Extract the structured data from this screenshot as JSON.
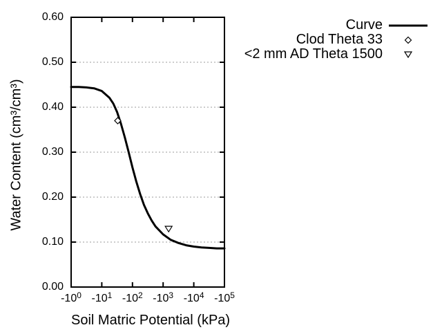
{
  "chart_data": {
    "type": "line",
    "title": "",
    "xlabel": "Soil Matric Potential (kPa)",
    "ylabel": "Water Content (cm³/cm³)",
    "x_axis": {
      "scale": "negative-log10",
      "log_range": [
        0,
        5
      ],
      "ticks": [
        {
          "base": "-10",
          "exp": "0",
          "log10_abs_kpa": 0
        },
        {
          "base": "-10",
          "exp": "1",
          "log10_abs_kpa": 1
        },
        {
          "base": "-10",
          "exp": "2",
          "log10_abs_kpa": 2
        },
        {
          "base": "-10",
          "exp": "3",
          "log10_abs_kpa": 3
        },
        {
          "base": "-10",
          "exp": "4",
          "log10_abs_kpa": 4
        },
        {
          "base": "-10",
          "exp": "5",
          "log10_abs_kpa": 5
        }
      ]
    },
    "y_axis": {
      "range": [
        0,
        0.6
      ],
      "ticks": [
        {
          "label": "0.00",
          "value": 0.0
        },
        {
          "label": "0.10",
          "value": 0.1
        },
        {
          "label": "0.20",
          "value": 0.2
        },
        {
          "label": "0.30",
          "value": 0.3
        },
        {
          "label": "0.40",
          "value": 0.4
        },
        {
          "label": "0.50",
          "value": 0.5
        },
        {
          "label": "0.60",
          "value": 0.6
        }
      ],
      "grid_values": [
        0.1,
        0.2,
        0.3,
        0.4,
        0.5
      ],
      "grid_style": "dashed"
    },
    "legend": {
      "position": "top-right-outside",
      "entries": [
        {
          "label": "Curve",
          "marker": "line"
        },
        {
          "label": "Clod Theta 33",
          "marker": "open-diamond"
        },
        {
          "label": "<2 mm AD Theta 1500",
          "marker": "open-triangle-down"
        }
      ]
    },
    "series": [
      {
        "name": "Curve",
        "type": "line",
        "color": "#000000",
        "points_log10_theta": [
          [
            0,
            0.445
          ],
          [
            0.25,
            0.445
          ],
          [
            0.5,
            0.444
          ],
          [
            0.75,
            0.442
          ],
          [
            1,
            0.436
          ],
          [
            1.25,
            0.421
          ],
          [
            1.375,
            0.408
          ],
          [
            1.5,
            0.389
          ],
          [
            1.625,
            0.363
          ],
          [
            1.75,
            0.333
          ],
          [
            1.875,
            0.3
          ],
          [
            2,
            0.266
          ],
          [
            2.125,
            0.235
          ],
          [
            2.25,
            0.207
          ],
          [
            2.375,
            0.183
          ],
          [
            2.5,
            0.164
          ],
          [
            2.625,
            0.148
          ],
          [
            2.75,
            0.135
          ],
          [
            3,
            0.117
          ],
          [
            3.25,
            0.105
          ],
          [
            3.5,
            0.098
          ],
          [
            3.75,
            0.093
          ],
          [
            4,
            0.09
          ],
          [
            4.25,
            0.088
          ],
          [
            4.5,
            0.087
          ],
          [
            4.75,
            0.086
          ],
          [
            5,
            0.086
          ]
        ]
      },
      {
        "name": "Clod Theta 33",
        "type": "scatter",
        "marker": "open-diamond",
        "color": "#000000",
        "points": [
          {
            "kpa": -33,
            "log10_abs_kpa": 1.52,
            "theta": 0.37
          }
        ]
      },
      {
        "name": "<2 mm AD Theta 1500",
        "type": "scatter",
        "marker": "open-triangle-down",
        "color": "#000000",
        "points": [
          {
            "kpa": -1500,
            "log10_abs_kpa": 3.18,
            "theta": 0.129
          }
        ]
      }
    ],
    "colors": {
      "curve": "#000000",
      "frame": "#000000",
      "grid": "#999999",
      "text": "#000000",
      "background": "#ffffff"
    }
  }
}
